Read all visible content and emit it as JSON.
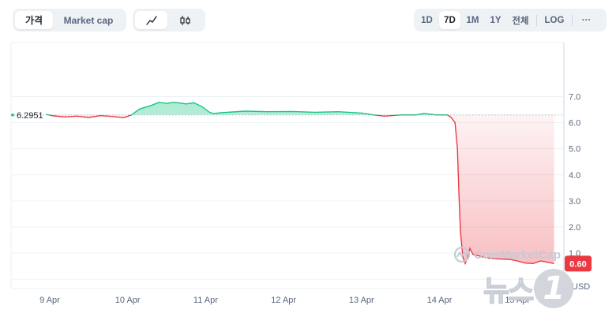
{
  "tabs_left": [
    {
      "label": "가격",
      "active": true
    },
    {
      "label": "Market cap",
      "active": false
    }
  ],
  "chart_type_tabs": [
    {
      "icon": "line-chart-icon",
      "active": true
    },
    {
      "icon": "candlestick-icon",
      "active": false
    }
  ],
  "range_tabs": [
    {
      "label": "1D",
      "active": false
    },
    {
      "label": "7D",
      "active": true
    },
    {
      "label": "1M",
      "active": false
    },
    {
      "label": "1Y",
      "active": false
    },
    {
      "label": "전체",
      "active": false
    }
  ],
  "log_label": "LOG",
  "more_label": "···",
  "watermark": "CoinMarketCap",
  "news_watermark": {
    "text": "뉴스",
    "digit": "1"
  },
  "colors": {
    "up": "#16c784",
    "down": "#ea3943",
    "grid": "#eff2f5",
    "axis_text": "#58667e"
  },
  "chart_data": {
    "type": "line",
    "reference_value": 6.2951,
    "reference_label": "6.2951",
    "current_value_label": "0.60",
    "currency_label": "USD",
    "ylim": [
      0,
      7.5
    ],
    "y_ticks": [
      {
        "value": 7,
        "label": "7.0"
      },
      {
        "value": 6,
        "label": "6.0"
      },
      {
        "value": 5,
        "label": "5.0"
      },
      {
        "value": 4,
        "label": "4.0"
      },
      {
        "value": 3,
        "label": "3.0"
      },
      {
        "value": 2,
        "label": "2.0"
      },
      {
        "value": 1,
        "label": "1.0"
      }
    ],
    "x_ticks": [
      {
        "t": 0,
        "label": "9 Apr"
      },
      {
        "t": 1,
        "label": "10 Apr"
      },
      {
        "t": 2,
        "label": "11 Apr"
      },
      {
        "t": 3,
        "label": "12 Apr"
      },
      {
        "t": 4,
        "label": "13 Apr"
      },
      {
        "t": 5,
        "label": "14 Apr"
      },
      {
        "t": 6,
        "label": "15 Apr"
      }
    ],
    "xlim": [
      -0.05,
      6.47
    ],
    "series": [
      {
        "points": [
          [
            -0.05,
            6.32
          ],
          [
            0.05,
            6.26
          ],
          [
            0.2,
            6.22
          ],
          [
            0.35,
            6.25
          ],
          [
            0.5,
            6.2
          ],
          [
            0.65,
            6.27
          ],
          [
            0.8,
            6.24
          ],
          [
            0.95,
            6.19
          ],
          [
            1.05,
            6.3
          ],
          [
            1.15,
            6.52
          ],
          [
            1.3,
            6.66
          ],
          [
            1.4,
            6.78
          ],
          [
            1.5,
            6.74
          ],
          [
            1.6,
            6.78
          ],
          [
            1.75,
            6.72
          ],
          [
            1.85,
            6.76
          ],
          [
            1.95,
            6.62
          ],
          [
            2.05,
            6.4
          ],
          [
            2.1,
            6.35
          ],
          [
            2.2,
            6.38
          ],
          [
            2.5,
            6.44
          ],
          [
            2.8,
            6.42
          ],
          [
            3.1,
            6.43
          ],
          [
            3.4,
            6.4
          ],
          [
            3.7,
            6.42
          ],
          [
            4.0,
            6.37
          ],
          [
            4.15,
            6.3
          ],
          [
            4.3,
            6.25
          ],
          [
            4.5,
            6.3
          ],
          [
            4.7,
            6.3
          ],
          [
            4.8,
            6.35
          ],
          [
            4.95,
            6.3
          ],
          [
            5.1,
            6.3
          ],
          [
            5.15,
            6.2
          ],
          [
            5.2,
            6.0
          ],
          [
            5.23,
            5.0
          ],
          [
            5.25,
            3.2
          ],
          [
            5.27,
            1.8
          ],
          [
            5.3,
            0.85
          ],
          [
            5.33,
            0.6
          ],
          [
            5.36,
            0.82
          ],
          [
            5.39,
            1.18
          ],
          [
            5.43,
            0.95
          ],
          [
            5.5,
            0.9
          ],
          [
            5.6,
            0.82
          ],
          [
            5.75,
            0.78
          ],
          [
            5.9,
            0.76
          ],
          [
            6.0,
            0.7
          ],
          [
            6.1,
            0.62
          ],
          [
            6.2,
            0.6
          ],
          [
            6.3,
            0.7
          ],
          [
            6.47,
            0.6
          ]
        ]
      }
    ]
  }
}
